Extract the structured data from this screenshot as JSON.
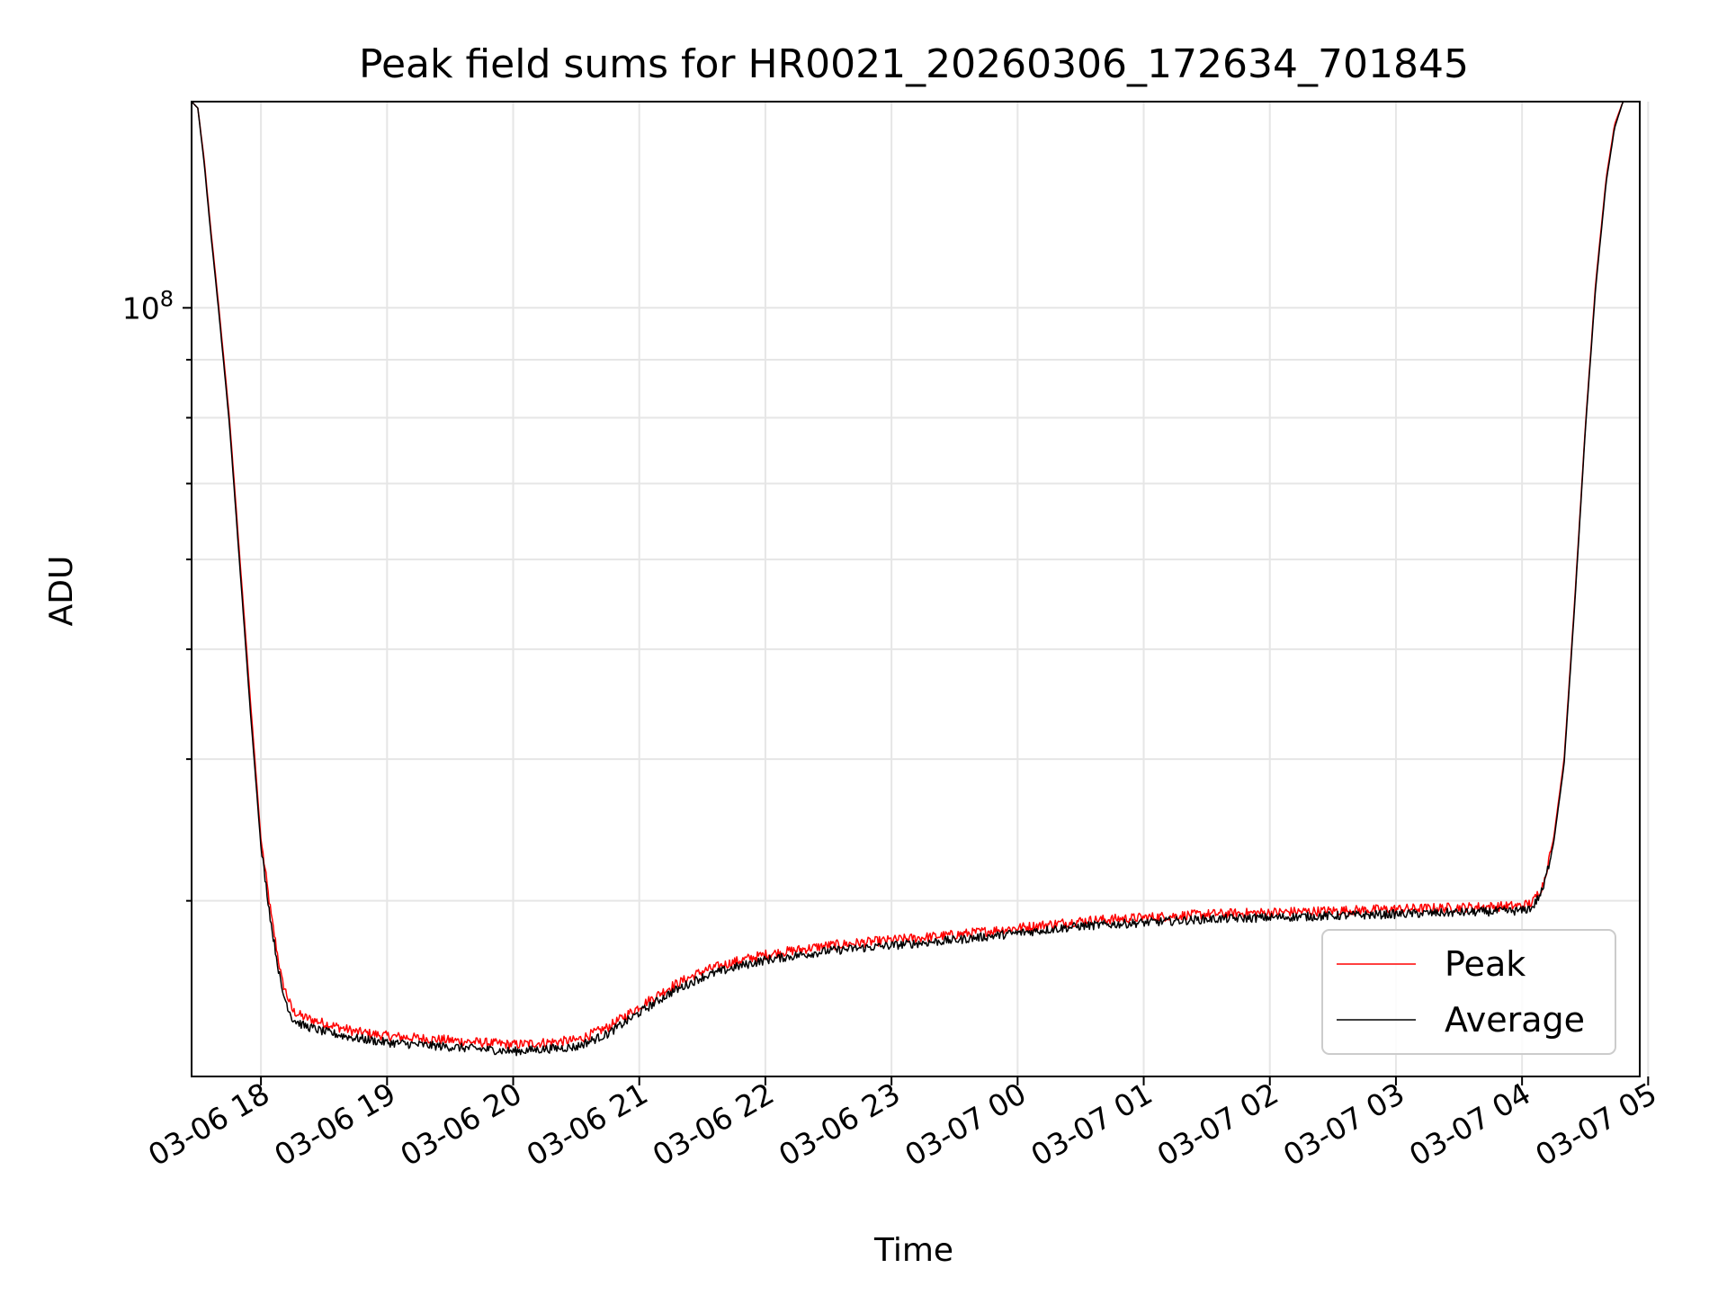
{
  "chart_data": {
    "type": "line",
    "title": "Peak field sums for HR0021_20260306_172634_701845",
    "xlabel": "Time",
    "ylabel": "ADU",
    "y_scale": "log",
    "ylim": [
      21000000,
      152000000
    ],
    "xlim": [
      "03-06 17:27",
      "03-07 04:56"
    ],
    "grid": true,
    "legend_position": "lower-right",
    "x_ticks": [
      "03-06 18",
      "03-06 19",
      "03-06 20",
      "03-06 21",
      "03-06 22",
      "03-06 23",
      "03-07 00",
      "03-07 01",
      "03-07 02",
      "03-07 03",
      "03-07 04",
      "03-07 05"
    ],
    "y_tick_major": {
      "base": "10",
      "exponent": "8",
      "value": 100000000
    },
    "series": [
      {
        "name": "Peak",
        "color": "#ff0000",
        "x": [
          "03-06 17:27",
          "03-06 17:30",
          "03-06 17:33",
          "03-06 17:36",
          "03-06 17:40",
          "03-06 17:45",
          "03-06 17:50",
          "03-06 17:55",
          "03-06 18:00",
          "03-06 18:05",
          "03-06 18:10",
          "03-06 18:15",
          "03-06 18:20",
          "03-06 18:30",
          "03-06 18:45",
          "03-06 19:00",
          "03-06 19:15",
          "03-06 19:30",
          "03-06 19:45",
          "03-06 20:00",
          "03-06 20:15",
          "03-06 20:30",
          "03-06 20:45",
          "03-06 21:00",
          "03-06 21:15",
          "03-06 21:30",
          "03-06 21:45",
          "03-06 22:00",
          "03-06 22:30",
          "03-06 23:00",
          "03-06 23:30",
          "03-07 00:00",
          "03-07 00:30",
          "03-07 01:00",
          "03-07 01:30",
          "03-07 02:00",
          "03-07 02:30",
          "03-07 03:00",
          "03-07 03:30",
          "03-07 04:00",
          "03-07 04:05",
          "03-07 04:10",
          "03-07 04:15",
          "03-07 04:20",
          "03-07 04:25",
          "03-07 04:30",
          "03-07 04:35",
          "03-07 04:40",
          "03-07 04:44",
          "03-07 04:48",
          "03-07 04:52",
          "03-07 04:56"
        ],
        "values": [
          152000000,
          150000000,
          135000000,
          118000000,
          100000000,
          80000000,
          60000000,
          45000000,
          34000000,
          29000000,
          25500000,
          24000000,
          23700000,
          23400000,
          23000000,
          22800000,
          22700000,
          22600000,
          22500000,
          22400000,
          22500000,
          22600000,
          23200000,
          24200000,
          25200000,
          26000000,
          26500000,
          26900000,
          27400000,
          27700000,
          28000000,
          28400000,
          28800000,
          29000000,
          29200000,
          29300000,
          29400000,
          29500000,
          29600000,
          29700000,
          29900000,
          31000000,
          34000000,
          40000000,
          55000000,
          78000000,
          105000000,
          130000000,
          145000000,
          152000000,
          152000000,
          152000000
        ]
      },
      {
        "name": "Average",
        "color": "#000000",
        "x": [
          "03-06 17:27",
          "03-06 17:30",
          "03-06 17:33",
          "03-06 17:36",
          "03-06 17:40",
          "03-06 17:45",
          "03-06 17:50",
          "03-06 17:55",
          "03-06 18:00",
          "03-06 18:05",
          "03-06 18:10",
          "03-06 18:15",
          "03-06 18:20",
          "03-06 18:30",
          "03-06 18:45",
          "03-06 19:00",
          "03-06 19:15",
          "03-06 19:30",
          "03-06 19:45",
          "03-06 20:00",
          "03-06 20:15",
          "03-06 20:30",
          "03-06 20:45",
          "03-06 21:00",
          "03-06 21:15",
          "03-06 21:30",
          "03-06 21:45",
          "03-06 22:00",
          "03-06 22:30",
          "03-06 23:00",
          "03-06 23:30",
          "03-07 00:00",
          "03-07 00:30",
          "03-07 01:00",
          "03-07 01:30",
          "03-07 02:00",
          "03-07 02:30",
          "03-07 03:00",
          "03-07 03:30",
          "03-07 04:00",
          "03-07 04:05",
          "03-07 04:10",
          "03-07 04:15",
          "03-07 04:20",
          "03-07 04:25",
          "03-07 04:30",
          "03-07 04:35",
          "03-07 04:40",
          "03-07 04:44",
          "03-07 04:48",
          "03-07 04:52",
          "03-07 04:56"
        ],
        "values": [
          152000000,
          150000000,
          134000000,
          117000000,
          99000000,
          79000000,
          59000000,
          44000000,
          33500000,
          28500000,
          25000000,
          23600000,
          23300000,
          23000000,
          22700000,
          22500000,
          22400000,
          22300000,
          22200000,
          22100000,
          22200000,
          22300000,
          22900000,
          23900000,
          24900000,
          25700000,
          26200000,
          26600000,
          27100000,
          27400000,
          27700000,
          28100000,
          28500000,
          28700000,
          28900000,
          29000000,
          29100000,
          29200000,
          29300000,
          29400000,
          29600000,
          30700000,
          33700000,
          39600000,
          54500000,
          77500000,
          104000000,
          129000000,
          144000000,
          152000000,
          152000000,
          152000000
        ]
      }
    ]
  }
}
